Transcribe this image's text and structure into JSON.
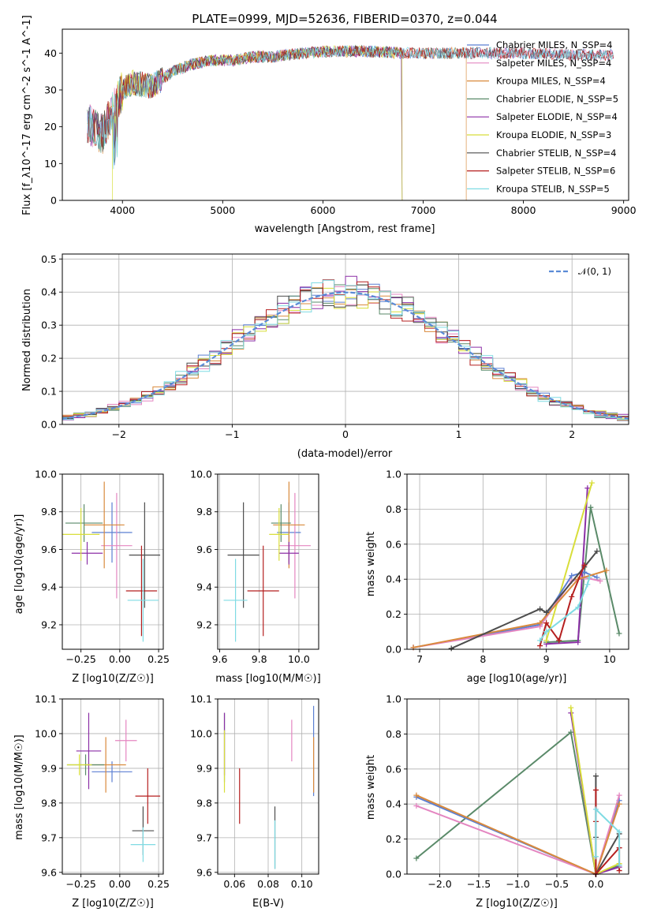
{
  "chart_data": [
    {
      "id": "spectrum",
      "type": "line",
      "title": "PLATE=0999, MJD=52636, FIBERID=0370, z=0.044",
      "xlabel": "wavelength [Angstrom, rest frame]",
      "ylabel": "Flux [f_λ10^-17 erg cm^-2 s^-1 A^-1]",
      "xlim": [
        3400,
        9050
      ],
      "ylim": [
        0,
        46.5
      ],
      "xticks": [
        4000,
        5000,
        6000,
        7000,
        8000,
        9000
      ],
      "yticks": [
        0,
        10,
        20,
        30,
        40
      ],
      "grid": false,
      "legend_position": "right",
      "continuum_points": [
        [
          3650,
          21
        ],
        [
          3700,
          20
        ],
        [
          3800,
          18
        ],
        [
          3900,
          24
        ],
        [
          4000,
          30
        ],
        [
          4100,
          32
        ],
        [
          4300,
          31
        ],
        [
          4500,
          35
        ],
        [
          4700,
          37
        ],
        [
          4900,
          38
        ],
        [
          5100,
          38
        ],
        [
          5300,
          39
        ],
        [
          5500,
          39
        ],
        [
          5800,
          40
        ],
        [
          6100,
          40.5
        ],
        [
          6400,
          40.5
        ],
        [
          6800,
          40
        ],
        [
          7200,
          40
        ],
        [
          7500,
          40
        ],
        [
          8000,
          40
        ],
        [
          8500,
          39.5
        ],
        [
          8900,
          39.5
        ]
      ],
      "series": [
        {
          "name": "Chabrier MILES, N_SSP=4",
          "color": "#5b7fd2",
          "x_start": 3650,
          "x_end": 8900
        },
        {
          "name": "Salpeter MILES, N_SSP=4",
          "color": "#e486c1",
          "x_start": 3650,
          "x_end": 8900
        },
        {
          "name": "Kroupa MILES, N_SSP=4",
          "color": "#d98a3c",
          "x_start": 3650,
          "x_end": 7430
        },
        {
          "name": "Chabrier ELODIE, N_SSP=5",
          "color": "#5a8a69",
          "x_start": 3650,
          "x_end": 6790
        },
        {
          "name": "Salpeter ELODIE, N_SSP=4",
          "color": "#8b2fa6",
          "x_start": 3650,
          "x_end": 6790
        },
        {
          "name": "Kroupa ELODIE, N_SSP=3",
          "color": "#d8de3a",
          "x_start": 3900,
          "x_end": 6790
        },
        {
          "name": "Chabrier STELIB, N_SSP=4",
          "color": "#4d4d4d",
          "x_start": 3650,
          "x_end": 8900
        },
        {
          "name": "Salpeter STELIB, N_SSP=6",
          "color": "#b51f1f",
          "x_start": 3650,
          "x_end": 8900
        },
        {
          "name": "Kroupa STELIB, N_SSP=5",
          "color": "#7fdbe3",
          "x_start": 3650,
          "x_end": 8900
        }
      ]
    },
    {
      "id": "residuals",
      "type": "histogram",
      "xlabel": "(data-model)/error",
      "ylabel": "Normed distribution",
      "xlim": [
        -2.5,
        2.5
      ],
      "ylim": [
        0,
        0.515
      ],
      "xticks": [
        -2,
        -1,
        0,
        1,
        2
      ],
      "yticks": [
        0.0,
        0.1,
        0.2,
        0.3,
        0.4,
        0.5
      ],
      "grid": true,
      "legend_position": "top-right",
      "reference_label": "𝒩(0, 1)",
      "reference_color": "#5b8bd6",
      "bin_width": 0.1,
      "series_colors": [
        "#5b7fd2",
        "#e486c1",
        "#d98a3c",
        "#5a8a69",
        "#8b2fa6",
        "#d8de3a",
        "#4d4d4d",
        "#b51f1f",
        "#7fdbe3"
      ]
    },
    {
      "id": "age-vs-Z",
      "type": "scatter",
      "xlabel": "Z [log10(Z/Z☉)]",
      "ylabel": "age [log10(age/yr)]",
      "xlim": [
        -0.37,
        0.28
      ],
      "ylim": [
        9.07,
        10.0
      ],
      "xticks": [
        -0.25,
        0.0,
        0.25
      ],
      "yticks": [
        9.2,
        9.4,
        9.6,
        9.8,
        10.0
      ],
      "grid": true,
      "points": [
        {
          "color": "#5b7fd2",
          "x": -0.05,
          "xerr": 0.13,
          "y": 9.69,
          "yerr": 0.16
        },
        {
          "color": "#e486c1",
          "x": -0.02,
          "xerr": 0.1,
          "y": 9.62,
          "yerr": 0.28
        },
        {
          "color": "#d98a3c",
          "x": -0.1,
          "xerr": 0.13,
          "y": 9.73,
          "yerr": 0.23
        },
        {
          "color": "#5a8a69",
          "x": -0.23,
          "xerr": 0.12,
          "y": 9.74,
          "yerr": 0.1
        },
        {
          "color": "#8b2fa6",
          "x": -0.21,
          "xerr": 0.1,
          "y": 9.58,
          "yerr": 0.06
        },
        {
          "color": "#d8de3a",
          "x": -0.25,
          "xerr": 0.12,
          "y": 9.68,
          "yerr": 0.14
        },
        {
          "color": "#4d4d4d",
          "x": 0.16,
          "xerr": 0.1,
          "y": 9.57,
          "yerr": 0.28
        },
        {
          "color": "#b51f1f",
          "x": 0.14,
          "xerr": 0.1,
          "y": 9.38,
          "yerr": 0.24
        },
        {
          "color": "#7fdbe3",
          "x": 0.15,
          "xerr": 0.1,
          "y": 9.33,
          "yerr": 0.22
        }
      ]
    },
    {
      "id": "age-vs-mass",
      "type": "scatter",
      "xlabel": "mass [log10(M/M☉)]",
      "ylabel": "",
      "xlim": [
        9.59,
        10.1
      ],
      "ylim": [
        9.07,
        10.0
      ],
      "xticks": [
        9.6,
        9.8,
        10.0
      ],
      "yticks": [
        9.2,
        9.4,
        9.6,
        9.8,
        10.0
      ],
      "grid": true,
      "points": [
        {
          "color": "#5b7fd2",
          "x": 9.95,
          "xerr": 0.06,
          "y": 9.69,
          "yerr": 0.16
        },
        {
          "color": "#e486c1",
          "x": 9.98,
          "xerr": 0.08,
          "y": 9.62,
          "yerr": 0.28
        },
        {
          "color": "#d98a3c",
          "x": 9.95,
          "xerr": 0.08,
          "y": 9.73,
          "yerr": 0.23
        },
        {
          "color": "#5a8a69",
          "x": 9.91,
          "xerr": 0.05,
          "y": 9.74,
          "yerr": 0.1
        },
        {
          "color": "#8b2fa6",
          "x": 9.95,
          "xerr": 0.05,
          "y": 9.58,
          "yerr": 0.06
        },
        {
          "color": "#d8de3a",
          "x": 9.9,
          "xerr": 0.05,
          "y": 9.68,
          "yerr": 0.14
        },
        {
          "color": "#4d4d4d",
          "x": 9.72,
          "xerr": 0.08,
          "y": 9.57,
          "yerr": 0.28
        },
        {
          "color": "#b51f1f",
          "x": 9.82,
          "xerr": 0.08,
          "y": 9.38,
          "yerr": 0.24
        },
        {
          "color": "#7fdbe3",
          "x": 9.68,
          "xerr": 0.06,
          "y": 9.33,
          "yerr": 0.22
        }
      ]
    },
    {
      "id": "massweight-vs-age",
      "type": "line",
      "xlabel": "age  [log10(age/yr)]",
      "ylabel": "mass weight",
      "xlim": [
        6.8,
        10.3
      ],
      "ylim": [
        0,
        1.0
      ],
      "xticks": [
        7,
        8,
        9,
        10
      ],
      "yticks": [
        0.0,
        0.2,
        0.4,
        0.6,
        0.8,
        1.0
      ],
      "grid": true,
      "series": [
        {
          "color": "#5a8a69",
          "x": [
            9.0,
            9.5,
            9.7,
            10.15
          ],
          "y": [
            0.04,
            0.05,
            0.81,
            0.09
          ]
        },
        {
          "color": "#8b2fa6",
          "x": [
            9.0,
            9.5,
            9.65
          ],
          "y": [
            0.03,
            0.04,
            0.92
          ]
        },
        {
          "color": "#d8de3a",
          "x": [
            9.0,
            9.72
          ],
          "y": [
            0.05,
            0.95
          ]
        },
        {
          "color": "#5b7fd2",
          "x": [
            6.9,
            8.9,
            9.4,
            9.6,
            9.8
          ],
          "y": [
            0.01,
            0.14,
            0.42,
            0.44,
            0.41
          ]
        },
        {
          "color": "#e486c1",
          "x": [
            6.9,
            8.9,
            9.4,
            9.6,
            9.85
          ],
          "y": [
            0.01,
            0.13,
            0.39,
            0.41,
            0.39
          ]
        },
        {
          "color": "#d98a3c",
          "x": [
            6.9,
            8.9,
            9.5,
            9.95
          ],
          "y": [
            0.01,
            0.15,
            0.4,
            0.45
          ]
        },
        {
          "color": "#4d4d4d",
          "x": [
            7.5,
            8.9,
            9.0,
            9.6,
            9.8
          ],
          "y": [
            0.005,
            0.23,
            0.21,
            0.47,
            0.56
          ]
        },
        {
          "color": "#b51f1f",
          "x": [
            8.9,
            9.0,
            9.2,
            9.4,
            9.6
          ],
          "y": [
            0.02,
            0.15,
            0.05,
            0.3,
            0.48
          ]
        },
        {
          "color": "#7fdbe3",
          "x": [
            8.9,
            9.0,
            9.5,
            9.65,
            9.68
          ],
          "y": [
            0.05,
            0.1,
            0.24,
            0.37,
            0.41
          ]
        }
      ]
    },
    {
      "id": "mass-vs-Z",
      "type": "scatter",
      "xlabel": "Z [log10(Z/Z☉)]",
      "ylabel": "mass [log10(M/M☉)]",
      "xlim": [
        -0.37,
        0.28
      ],
      "ylim": [
        9.595,
        10.1
      ],
      "xticks": [
        -0.25,
        0.0,
        0.25
      ],
      "yticks": [
        9.6,
        9.7,
        9.8,
        9.9,
        10.0,
        10.1
      ],
      "grid": true,
      "points": [
        {
          "color": "#5b7fd2",
          "x": -0.05,
          "xerr": 0.13,
          "y": 9.89,
          "yerr": 0.03
        },
        {
          "color": "#e486c1",
          "x": 0.04,
          "xerr": 0.07,
          "y": 9.98,
          "yerr": 0.06
        },
        {
          "color": "#d98a3c",
          "x": -0.09,
          "xerr": 0.13,
          "y": 9.91,
          "yerr": 0.08
        },
        {
          "color": "#5a8a69",
          "x": -0.22,
          "xerr": 0.12,
          "y": 9.91,
          "yerr": 0.03
        },
        {
          "color": "#8b2fa6",
          "x": -0.2,
          "xerr": 0.08,
          "y": 9.95,
          "yerr": 0.11
        },
        {
          "color": "#d8de3a",
          "x": -0.26,
          "xerr": 0.08,
          "y": 9.91,
          "yerr": 0.03
        },
        {
          "color": "#4d4d4d",
          "x": 0.15,
          "xerr": 0.07,
          "y": 9.72,
          "yerr": 0.07
        },
        {
          "color": "#b51f1f",
          "x": 0.18,
          "xerr": 0.08,
          "y": 9.82,
          "yerr": 0.08
        },
        {
          "color": "#7fdbe3",
          "x": 0.15,
          "xerr": 0.08,
          "y": 9.68,
          "yerr": 0.05
        }
      ]
    },
    {
      "id": "mass-vs-EBV",
      "type": "scatter",
      "xlabel": "E(B-V)",
      "ylabel": "",
      "xlim": [
        0.05,
        0.11
      ],
      "ylim": [
        9.595,
        10.1
      ],
      "xticks": [
        0.06,
        0.08,
        0.1
      ],
      "yticks": [
        9.6,
        9.7,
        9.8,
        9.9,
        10.0,
        10.1
      ],
      "grid": true,
      "points": [
        {
          "color": "#5b7fd2",
          "x": 0.107,
          "y": 9.95,
          "yerr": 0.13
        },
        {
          "color": "#e486c1",
          "x": 0.094,
          "y": 9.98,
          "yerr": 0.06
        },
        {
          "color": "#d98a3c",
          "x": 0.107,
          "y": 9.91,
          "yerr": 0.08
        },
        {
          "color": "#5a8a69",
          "x": 0.054,
          "y": 9.96,
          "yerr": 0.1
        },
        {
          "color": "#8b2fa6",
          "x": 0.054,
          "y": 9.97,
          "yerr": 0.09
        },
        {
          "color": "#d8de3a",
          "x": 0.054,
          "y": 9.92,
          "yerr": 0.09
        },
        {
          "color": "#4d4d4d",
          "x": 0.084,
          "y": 9.7,
          "yerr": 0.09
        },
        {
          "color": "#b51f1f",
          "x": 0.063,
          "y": 9.82,
          "yerr": 0.08
        },
        {
          "color": "#7fdbe3",
          "x": 0.084,
          "y": 9.68,
          "yerr": 0.07
        }
      ]
    },
    {
      "id": "massweight-vs-Z",
      "type": "line",
      "xlabel": "Z [log10(Z/Z☉)]",
      "ylabel": "mass weight",
      "xlim": [
        -2.42,
        0.42
      ],
      "ylim": [
        0,
        1.0
      ],
      "xticks": [
        -2.0,
        -1.5,
        -1.0,
        -0.5,
        0.0
      ],
      "yticks": [
        0.0,
        0.2,
        0.4,
        0.6,
        0.8,
        1.0
      ],
      "grid": true,
      "series": [
        {
          "color": "#5a8a69",
          "x": [
            -2.3,
            -0.32,
            0.0,
            0.3
          ],
          "y": [
            0.09,
            0.81,
            0.0,
            0.05
          ]
        },
        {
          "color": "#8b2fa6",
          "x": [
            -0.32,
            0.0,
            0.3
          ],
          "y": [
            0.92,
            0.0,
            0.04
          ]
        },
        {
          "color": "#d8de3a",
          "x": [
            -0.32,
            0.0,
            0.3
          ],
          "y": [
            0.95,
            0.0,
            0.06
          ]
        },
        {
          "color": "#5b7fd2",
          "x": [
            -2.3,
            0.0,
            0.3
          ],
          "y": [
            0.44,
            0.0,
            0.42
          ]
        },
        {
          "color": "#e486c1",
          "x": [
            -2.3,
            0.0,
            0.3
          ],
          "y": [
            0.39,
            0.0,
            0.45
          ]
        },
        {
          "color": "#d98a3c",
          "x": [
            -2.3,
            0.0,
            0.3
          ],
          "y": [
            0.45,
            0.0,
            0.4
          ]
        },
        {
          "color": "#4d4d4d",
          "x": [
            0.0,
            0.0,
            0.0,
            0.3
          ],
          "y": [
            0.56,
            0.21,
            0.0,
            0.23
          ]
        },
        {
          "color": "#b51f1f",
          "x": [
            0.0,
            0.0,
            0.0,
            0.3,
            0.3
          ],
          "y": [
            0.48,
            0.3,
            0.0,
            0.15,
            0.02
          ]
        },
        {
          "color": "#7fdbe3",
          "x": [
            0.0,
            0.0,
            0.3,
            0.3
          ],
          "y": [
            0.1,
            0.37,
            0.24,
            0.05
          ]
        }
      ]
    }
  ]
}
